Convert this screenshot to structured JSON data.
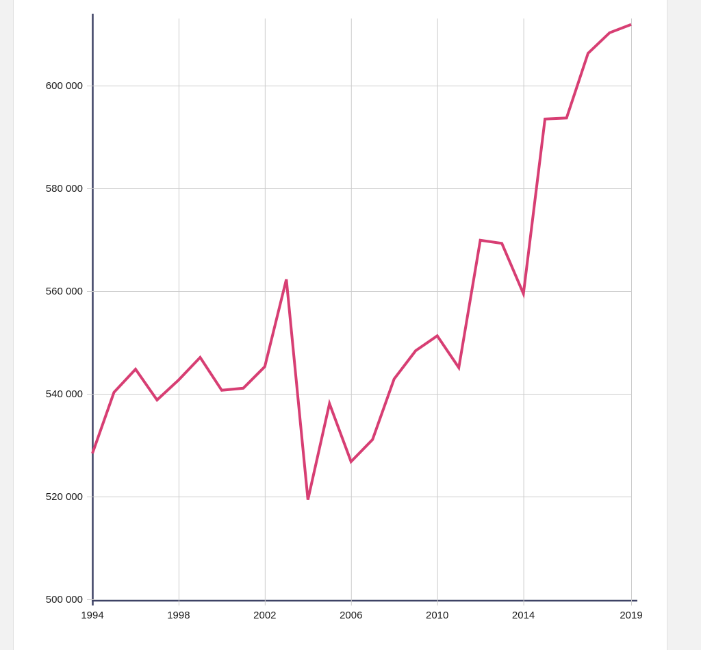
{
  "chart_data": {
    "type": "line",
    "title": "",
    "xlabel": "",
    "ylabel": "",
    "x": [
      1994,
      1995,
      1996,
      1997,
      1998,
      1999,
      2000,
      2001,
      2002,
      2003,
      2004,
      2005,
      2006,
      2007,
      2008,
      2009,
      2010,
      2011,
      2012,
      2013,
      2014,
      2015,
      2016,
      2017,
      2018,
      2019
    ],
    "values": [
      528400,
      540300,
      544800,
      538800,
      542700,
      547100,
      540700,
      541100,
      545300,
      562300,
      519400,
      538100,
      526800,
      531100,
      542900,
      548400,
      551300,
      545100,
      569900,
      569300,
      559500,
      593500,
      593700,
      606300,
      610300,
      611900
    ],
    "xlim": [
      1994,
      2019
    ],
    "ylim": [
      500000,
      613000
    ],
    "xticks": [
      1994,
      1998,
      2002,
      2006,
      2010,
      2014,
      2019
    ],
    "xtick_labels": [
      "1994",
      "1998",
      "2002",
      "2006",
      "2010",
      "2014",
      "2019"
    ],
    "ytick_values": [
      500000,
      520000,
      540000,
      560000,
      580000,
      600000
    ],
    "ytick_labels": [
      "500 000",
      "520 000",
      "540 000",
      "560 000",
      "580 000",
      "600 000"
    ],
    "grid": true,
    "legend": "none",
    "colors": {
      "line": "#d73e73",
      "axis": "#3e4265",
      "grid": "#cccccc",
      "tick_text": "#1a1a1a",
      "plot_background": "#ffffff",
      "page_gutter": "#f2f2f2"
    }
  }
}
